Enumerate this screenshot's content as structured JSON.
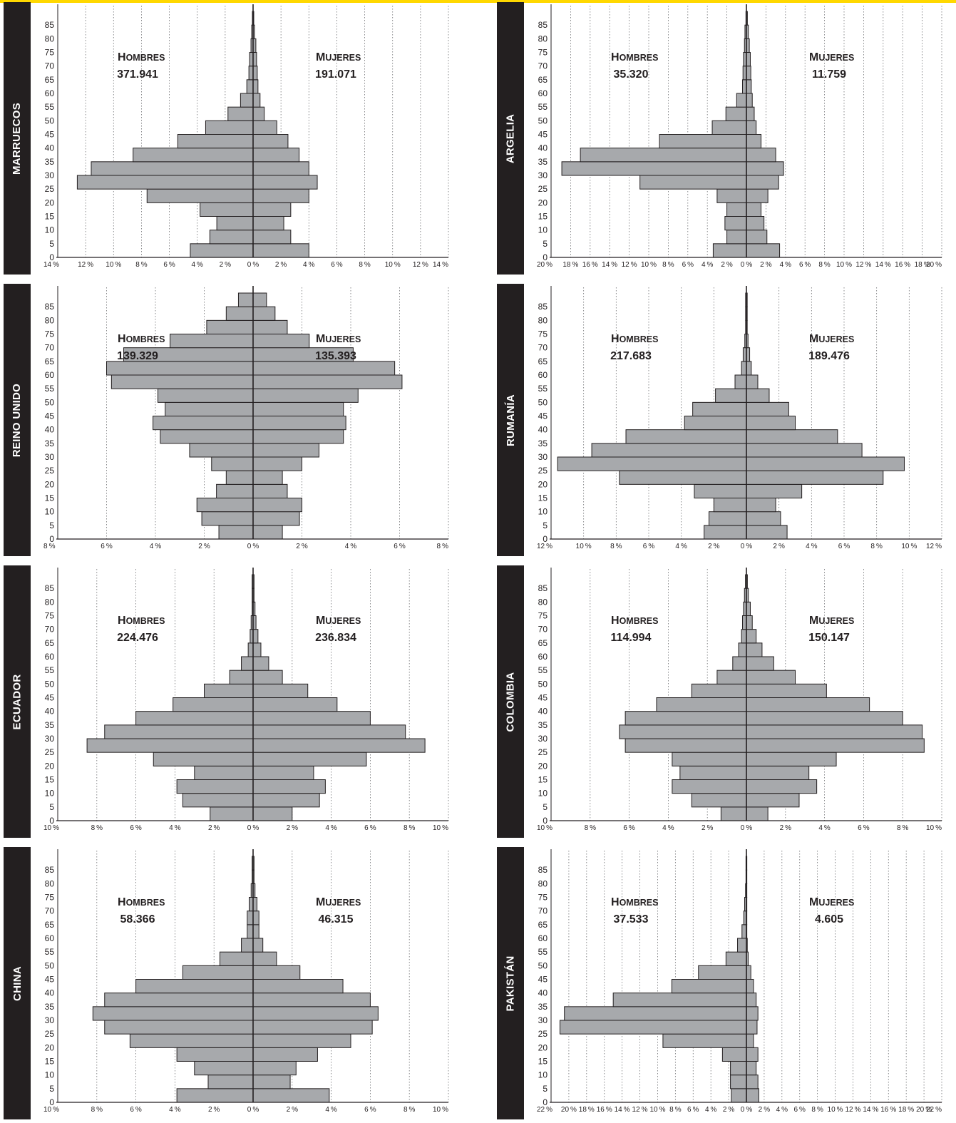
{
  "labels": {
    "men_initial": "H",
    "men_rest": "OMBRES",
    "women_initial": "M",
    "women_rest": "UJERES"
  },
  "colors": {
    "accent": "#ffd800",
    "bar_fill": "#a7a9ac",
    "bar_stroke": "#231f20",
    "sidebar": "#231f20"
  },
  "y_ticks": [
    "0",
    "5",
    "10",
    "15",
    "20",
    "25",
    "30",
    "35",
    "40",
    "45",
    "50",
    "55",
    "60",
    "65",
    "70",
    "75",
    "80",
    "85"
  ],
  "chart_data": [
    {
      "type": "bar",
      "orientation": "horizontal",
      "country": "MARRUECOS",
      "men_total": "371.941",
      "women_total": "191.071",
      "categories": [
        "0",
        "5",
        "10",
        "15",
        "20",
        "25",
        "30",
        "35",
        "40",
        "45",
        "50",
        "55",
        "60",
        "65",
        "70",
        "75",
        "80",
        "85"
      ],
      "series": [
        {
          "name": "Hombres",
          "values": [
            4.5,
            3.1,
            2.6,
            3.8,
            7.6,
            12.6,
            11.6,
            8.6,
            5.4,
            3.4,
            1.8,
            0.9,
            0.45,
            0.3,
            0.25,
            0.15,
            0.1,
            0.05
          ]
        },
        {
          "name": "Mujeres",
          "values": [
            4.0,
            2.7,
            2.2,
            2.7,
            4.0,
            4.6,
            4.0,
            3.3,
            2.5,
            1.7,
            0.8,
            0.5,
            0.35,
            0.3,
            0.25,
            0.2,
            0.1,
            0.05
          ]
        }
      ],
      "xlim": [
        -14,
        14
      ],
      "x_ticks": [
        14,
        12,
        10,
        8,
        6,
        4,
        2,
        0,
        2,
        4,
        6,
        8,
        10,
        12,
        14
      ]
    },
    {
      "type": "bar",
      "orientation": "horizontal",
      "country": "ARGELIA",
      "men_total": "35.320",
      "women_total": "11.759",
      "categories": [
        "0",
        "5",
        "10",
        "15",
        "20",
        "25",
        "30",
        "35",
        "40",
        "45",
        "50",
        "55",
        "60",
        "65",
        "70",
        "75",
        "80",
        "85"
      ],
      "series": [
        {
          "name": "Hombres",
          "values": [
            3.4,
            2.0,
            2.2,
            2.0,
            3.0,
            10.9,
            18.9,
            17.0,
            8.9,
            3.5,
            2.1,
            1.0,
            0.4,
            0.35,
            0.3,
            0.2,
            0.15,
            0.05
          ]
        },
        {
          "name": "Mujeres",
          "values": [
            3.4,
            2.1,
            1.8,
            1.5,
            2.2,
            3.3,
            3.8,
            3.0,
            1.5,
            1.0,
            0.8,
            0.6,
            0.5,
            0.45,
            0.4,
            0.3,
            0.2,
            0.1
          ]
        }
      ],
      "xlim": [
        -20,
        20
      ],
      "x_ticks": [
        20,
        18,
        16,
        14,
        12,
        10,
        8,
        6,
        4,
        2,
        0,
        2,
        4,
        6,
        8,
        10,
        12,
        14,
        16,
        18,
        20
      ]
    },
    {
      "type": "bar",
      "orientation": "horizontal",
      "country": "REINO UNIDO",
      "men_total": "139.329",
      "women_total": "135.393",
      "categories": [
        "0",
        "5",
        "10",
        "15",
        "20",
        "25",
        "30",
        "35",
        "40",
        "45",
        "50",
        "55",
        "60",
        "65",
        "70",
        "75",
        "80",
        "85"
      ],
      "series": [
        {
          "name": "Hombres",
          "values": [
            1.4,
            2.1,
            2.3,
            1.5,
            1.1,
            1.7,
            2.6,
            3.8,
            4.1,
            3.6,
            3.9,
            5.8,
            6.0,
            5.3,
            3.4,
            1.9,
            1.1,
            0.6
          ]
        },
        {
          "name": "Mujeres",
          "values": [
            1.2,
            1.9,
            2.0,
            1.4,
            1.2,
            2.0,
            2.7,
            3.7,
            3.8,
            3.7,
            4.3,
            6.1,
            5.8,
            4.1,
            2.3,
            1.4,
            0.9,
            0.55
          ]
        }
      ],
      "xlim": [
        -8,
        8
      ],
      "x_ticks": [
        8,
        6,
        4,
        2,
        0,
        2,
        4,
        6,
        8
      ]
    },
    {
      "type": "bar",
      "orientation": "horizontal",
      "country": "RUMANÍA",
      "men_total": "217.683",
      "women_total": "189.476",
      "categories": [
        "0",
        "5",
        "10",
        "15",
        "20",
        "25",
        "30",
        "35",
        "40",
        "45",
        "50",
        "55",
        "60",
        "65",
        "70",
        "75",
        "80",
        "85"
      ],
      "series": [
        {
          "name": "Hombres",
          "values": [
            2.6,
            2.3,
            2.0,
            3.2,
            7.8,
            11.6,
            9.5,
            7.4,
            3.8,
            3.3,
            1.9,
            0.7,
            0.3,
            0.2,
            0.1,
            0.05,
            0.05,
            0.05
          ]
        },
        {
          "name": "Mujeres",
          "values": [
            2.5,
            2.1,
            1.8,
            3.4,
            8.4,
            9.7,
            7.1,
            5.6,
            3.0,
            2.6,
            1.4,
            0.7,
            0.3,
            0.2,
            0.1,
            0.05,
            0.05,
            0.05
          ]
        }
      ],
      "xlim": [
        -12,
        12
      ],
      "x_ticks": [
        12,
        10,
        8,
        6,
        4,
        2,
        0,
        2,
        4,
        6,
        8,
        10,
        12
      ]
    },
    {
      "type": "bar",
      "orientation": "horizontal",
      "country": "ECUADOR",
      "men_total": "224.476",
      "women_total": "236.834",
      "categories": [
        "0",
        "5",
        "10",
        "15",
        "20",
        "25",
        "30",
        "35",
        "40",
        "45",
        "50",
        "55",
        "60",
        "65",
        "70",
        "75",
        "80",
        "85"
      ],
      "series": [
        {
          "name": "Hombres",
          "values": [
            2.2,
            3.6,
            3.9,
            3.0,
            5.1,
            8.5,
            7.6,
            6.0,
            4.1,
            2.5,
            1.2,
            0.6,
            0.25,
            0.15,
            0.1,
            0.05,
            0.05,
            0.05
          ]
        },
        {
          "name": "Mujeres",
          "values": [
            2.0,
            3.4,
            3.7,
            3.1,
            5.8,
            8.8,
            7.8,
            6.0,
            4.3,
            2.8,
            1.5,
            0.8,
            0.4,
            0.25,
            0.15,
            0.1,
            0.05,
            0.05
          ]
        }
      ],
      "xlim": [
        -10,
        10
      ],
      "x_ticks": [
        10,
        8,
        6,
        4,
        2,
        0,
        2,
        4,
        6,
        8,
        10
      ]
    },
    {
      "type": "bar",
      "orientation": "horizontal",
      "country": "COLOMBIA",
      "men_total": "114.994",
      "women_total": "150.147",
      "categories": [
        "0",
        "5",
        "10",
        "15",
        "20",
        "25",
        "30",
        "35",
        "40",
        "45",
        "50",
        "55",
        "60",
        "65",
        "70",
        "75",
        "80",
        "85"
      ],
      "series": [
        {
          "name": "Hombres",
          "values": [
            1.3,
            2.8,
            3.8,
            3.4,
            3.8,
            6.2,
            6.5,
            6.2,
            4.6,
            2.8,
            1.5,
            0.7,
            0.4,
            0.25,
            0.2,
            0.15,
            0.1,
            0.05
          ]
        },
        {
          "name": "Mujeres",
          "values": [
            1.1,
            2.7,
            3.6,
            3.2,
            4.6,
            9.1,
            9.0,
            8.0,
            6.3,
            4.1,
            2.5,
            1.4,
            0.8,
            0.5,
            0.3,
            0.2,
            0.1,
            0.05
          ]
        }
      ],
      "xlim": [
        -10,
        10
      ],
      "x_ticks": [
        10,
        8,
        6,
        4,
        2,
        0,
        2,
        4,
        6,
        8,
        10
      ]
    },
    {
      "type": "bar",
      "orientation": "horizontal",
      "country": "CHINA",
      "men_total": "58.366",
      "women_total": "46.315",
      "categories": [
        "0",
        "5",
        "10",
        "15",
        "20",
        "25",
        "30",
        "35",
        "40",
        "45",
        "50",
        "55",
        "60",
        "65",
        "70",
        "75",
        "80",
        "85"
      ],
      "series": [
        {
          "name": "Hombres",
          "values": [
            3.9,
            2.3,
            3.0,
            3.9,
            6.3,
            7.6,
            8.2,
            7.6,
            6.0,
            3.6,
            1.7,
            0.6,
            0.3,
            0.3,
            0.2,
            0.1,
            0.05,
            0.05
          ]
        },
        {
          "name": "Mujeres",
          "values": [
            3.9,
            1.9,
            2.2,
            3.3,
            5.0,
            6.1,
            6.4,
            6.0,
            4.6,
            2.4,
            1.2,
            0.5,
            0.3,
            0.3,
            0.2,
            0.1,
            0.05,
            0.05
          ]
        }
      ],
      "xlim": [
        -10,
        10
      ],
      "x_ticks": [
        10,
        8,
        6,
        4,
        2,
        0,
        2,
        4,
        6,
        8,
        10
      ]
    },
    {
      "type": "bar",
      "orientation": "horizontal",
      "country": "PAKISTÁN",
      "men_total": "37.533",
      "women_total": "4.605",
      "categories": [
        "0",
        "5",
        "10",
        "15",
        "20",
        "25",
        "30",
        "35",
        "40",
        "45",
        "50",
        "55",
        "60",
        "65",
        "70",
        "75",
        "80",
        "85"
      ],
      "series": [
        {
          "name": "Hombres",
          "values": [
            1.7,
            1.8,
            1.8,
            2.7,
            9.4,
            21.0,
            20.5,
            15.0,
            8.4,
            5.4,
            2.3,
            1.0,
            0.5,
            0.3,
            0.2,
            0.1,
            0.05,
            0.05
          ]
        },
        {
          "name": "Mujeres",
          "values": [
            1.4,
            1.3,
            1.1,
            1.3,
            0.8,
            1.2,
            1.3,
            1.1,
            0.8,
            0.5,
            0.2,
            0.1,
            0.05,
            0.05,
            0.05,
            0.05,
            0.05,
            0.05
          ]
        }
      ],
      "xlim": [
        -22,
        22
      ],
      "x_ticks": [
        22,
        20,
        18,
        16,
        14,
        12,
        10,
        8,
        6,
        4,
        2,
        0,
        2,
        4,
        6,
        8,
        10,
        12,
        14,
        16,
        18,
        20,
        22
      ]
    }
  ]
}
